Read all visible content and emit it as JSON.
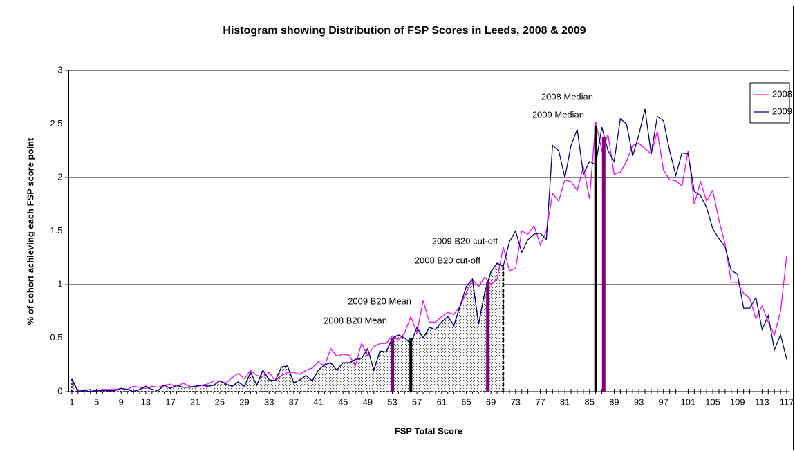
{
  "chart_data": {
    "type": "line",
    "title": "Histogram showing Distribution of FSP Scores in Leeds, 2008 & 2009",
    "xlabel": "FSP Total Score",
    "ylabel": "% of cohort achieving each FSP score point",
    "x": [
      1,
      2,
      3,
      4,
      5,
      6,
      7,
      8,
      9,
      10,
      11,
      12,
      13,
      14,
      15,
      16,
      17,
      18,
      19,
      20,
      21,
      22,
      23,
      24,
      25,
      26,
      27,
      28,
      29,
      30,
      31,
      32,
      33,
      34,
      35,
      36,
      37,
      38,
      39,
      40,
      41,
      42,
      43,
      44,
      45,
      46,
      47,
      48,
      49,
      50,
      51,
      52,
      53,
      54,
      55,
      56,
      57,
      58,
      59,
      60,
      61,
      62,
      63,
      64,
      65,
      66,
      67,
      68,
      69,
      70,
      71,
      72,
      73,
      74,
      75,
      76,
      77,
      78,
      79,
      80,
      81,
      82,
      83,
      84,
      85,
      86,
      87,
      88,
      89,
      90,
      91,
      92,
      93,
      94,
      95,
      96,
      97,
      98,
      99,
      100,
      101,
      102,
      103,
      104,
      105,
      106,
      107,
      108,
      109,
      110,
      111,
      112,
      113,
      114,
      115,
      116,
      117
    ],
    "series": [
      {
        "name": "2008",
        "color": "#ff00ff",
        "values": [
          0.1,
          0.01,
          0.01,
          0.02,
          0.01,
          0.02,
          0.02,
          0.02,
          0.03,
          0.02,
          0.05,
          0.04,
          0.03,
          0.05,
          0.04,
          0.06,
          0.07,
          0.04,
          0.08,
          0.05,
          0.04,
          0.06,
          0.07,
          0.1,
          0.1,
          0.08,
          0.13,
          0.17,
          0.12,
          0.2,
          0.15,
          0.14,
          0.18,
          0.1,
          0.15,
          0.18,
          0.18,
          0.16,
          0.2,
          0.22,
          0.28,
          0.24,
          0.4,
          0.33,
          0.35,
          0.34,
          0.24,
          0.45,
          0.34,
          0.42,
          0.45,
          0.45,
          0.52,
          0.48,
          0.55,
          0.7,
          0.55,
          0.85,
          0.65,
          0.65,
          0.7,
          0.74,
          0.72,
          0.8,
          0.92,
          1.05,
          0.98,
          1.07,
          1.0,
          1.05,
          1.35,
          1.13,
          1.15,
          1.5,
          1.47,
          1.55,
          1.37,
          1.5,
          1.85,
          1.78,
          1.98,
          1.96,
          1.88,
          2.1,
          1.8,
          2.52,
          2.25,
          2.4,
          2.03,
          2.05,
          2.15,
          2.3,
          2.32,
          2.27,
          2.22,
          2.43,
          2.07,
          1.98,
          1.97,
          1.92,
          2.25,
          1.75,
          1.96,
          1.78,
          1.88,
          1.6,
          1.38,
          1.02,
          1.02,
          0.92,
          0.87,
          0.68,
          0.8,
          0.65,
          0.53,
          0.75,
          1.27
        ]
      },
      {
        "name": "2009",
        "color": "#000080",
        "values": [
          0.12,
          0.0,
          0.01,
          0.0,
          0.01,
          0.01,
          0.01,
          0.01,
          0.03,
          0.02,
          0.0,
          0.02,
          0.05,
          0.02,
          0.01,
          0.06,
          0.03,
          0.06,
          0.04,
          0.04,
          0.05,
          0.06,
          0.05,
          0.06,
          0.1,
          0.07,
          0.05,
          0.09,
          0.05,
          0.18,
          0.06,
          0.2,
          0.11,
          0.1,
          0.23,
          0.24,
          0.08,
          0.11,
          0.15,
          0.1,
          0.2,
          0.25,
          0.27,
          0.2,
          0.27,
          0.27,
          0.3,
          0.31,
          0.4,
          0.2,
          0.38,
          0.37,
          0.5,
          0.53,
          0.5,
          0.45,
          0.6,
          0.5,
          0.6,
          0.58,
          0.65,
          0.7,
          0.62,
          0.8,
          0.98,
          1.05,
          0.63,
          0.93,
          1.12,
          1.2,
          1.17,
          1.4,
          1.5,
          1.3,
          1.42,
          1.47,
          1.48,
          1.42,
          2.3,
          2.25,
          2.0,
          2.3,
          2.45,
          2.03,
          2.15,
          2.12,
          2.47,
          2.25,
          2.15,
          2.55,
          2.5,
          2.2,
          2.4,
          2.64,
          2.22,
          2.57,
          2.53,
          2.25,
          2.02,
          2.23,
          2.22,
          1.87,
          1.83,
          1.72,
          1.52,
          1.43,
          1.35,
          1.13,
          1.1,
          0.78,
          0.78,
          0.88,
          0.58,
          0.71,
          0.39,
          0.53,
          0.3
        ]
      }
    ],
    "annotations": [
      {
        "text": "2008 B20 Mean",
        "x": 53,
        "y": 0.5,
        "color": "#800080"
      },
      {
        "text": "2009 B20 Mean",
        "x": 56,
        "y": 0.5,
        "color": "#000000"
      },
      {
        "text": "2008 B20 cut-off",
        "x": 68.5,
        "y": 1.02,
        "color": "#800080"
      },
      {
        "text": "2009 B20 cut-off",
        "x": 71,
        "y": 1.18,
        "color": "#000000",
        "dashed": true
      },
      {
        "text": "2008 Median",
        "x": 87.3,
        "y": 2.38,
        "color": "#800080"
      },
      {
        "text": "2009 Median",
        "x": 86,
        "y": 2.48,
        "color": "#000000"
      }
    ],
    "xlim": [
      0.5,
      117.5
    ],
    "xticks": [
      1,
      5,
      9,
      13,
      17,
      21,
      25,
      29,
      33,
      37,
      41,
      45,
      49,
      53,
      57,
      61,
      65,
      69,
      73,
      77,
      81,
      85,
      89,
      93,
      97,
      101,
      105,
      109,
      113,
      117
    ],
    "ylim": [
      0,
      3
    ],
    "yticks": [
      0,
      0.5,
      1,
      1.5,
      2,
      2.5,
      3
    ],
    "grid": true,
    "legend": "upper right"
  }
}
